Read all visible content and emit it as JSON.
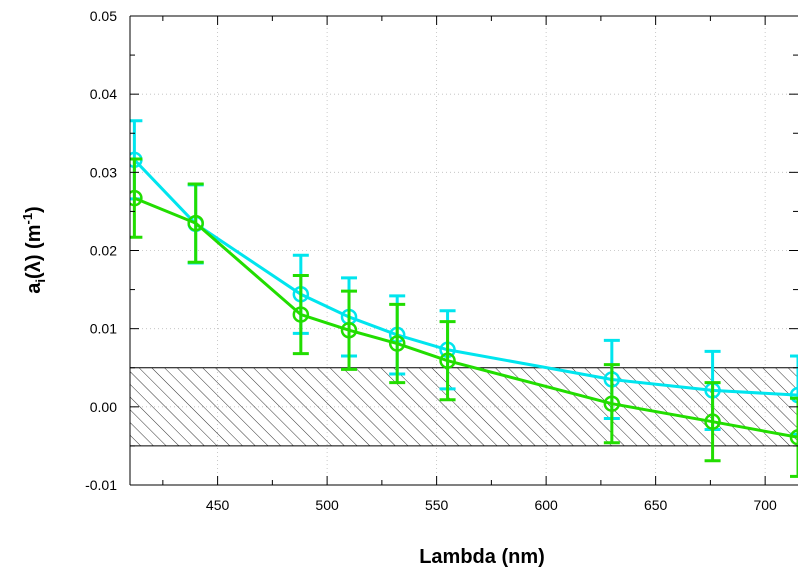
{
  "chart_data": {
    "type": "line",
    "title": "",
    "xlabel": "Lambda (nm)",
    "ylabel": {
      "prefix": "a",
      "subscript": "i",
      "middle": "(λ) (m",
      "superscript": "-1",
      "suffix": ")"
    },
    "xlim": [
      410,
      715
    ],
    "ylim": [
      -0.01,
      0.05
    ],
    "xticks": [
      450,
      500,
      550,
      600,
      650,
      700
    ],
    "xtick_labels": [
      "450",
      "500",
      "550",
      "600",
      "650",
      "700"
    ],
    "yticks": [
      -0.01,
      0.0,
      0.01,
      0.02,
      0.03,
      0.04,
      0.05
    ],
    "ytick_labels": [
      "-0.01",
      "0.00",
      "0.01",
      "0.02",
      "0.03",
      "0.04",
      "0.05"
    ],
    "grid": true,
    "hatched_band": {
      "y_low": -0.005,
      "y_high": 0.005
    },
    "series": [
      {
        "color": "#00e5ee",
        "x": [
          412,
          440,
          488,
          510,
          532,
          555,
          630,
          676,
          715
        ],
        "y": [
          0.0316,
          0.0234,
          0.0144,
          0.0115,
          0.0092,
          0.0073,
          0.0035,
          0.0021,
          0.0015
        ],
        "yerr": [
          0.005,
          0.005,
          0.005,
          0.005,
          0.005,
          0.005,
          0.005,
          0.005,
          0.005
        ]
      },
      {
        "color": "#22dd00",
        "x": [
          412,
          440,
          488,
          510,
          532,
          555,
          630,
          676,
          715
        ],
        "y": [
          0.0267,
          0.0235,
          0.0118,
          0.0098,
          0.0081,
          0.0059,
          0.0004,
          -0.0019,
          -0.0039
        ],
        "yerr": [
          0.005,
          0.005,
          0.005,
          0.005,
          0.005,
          0.005,
          0.005,
          0.005,
          0.005
        ]
      }
    ]
  }
}
